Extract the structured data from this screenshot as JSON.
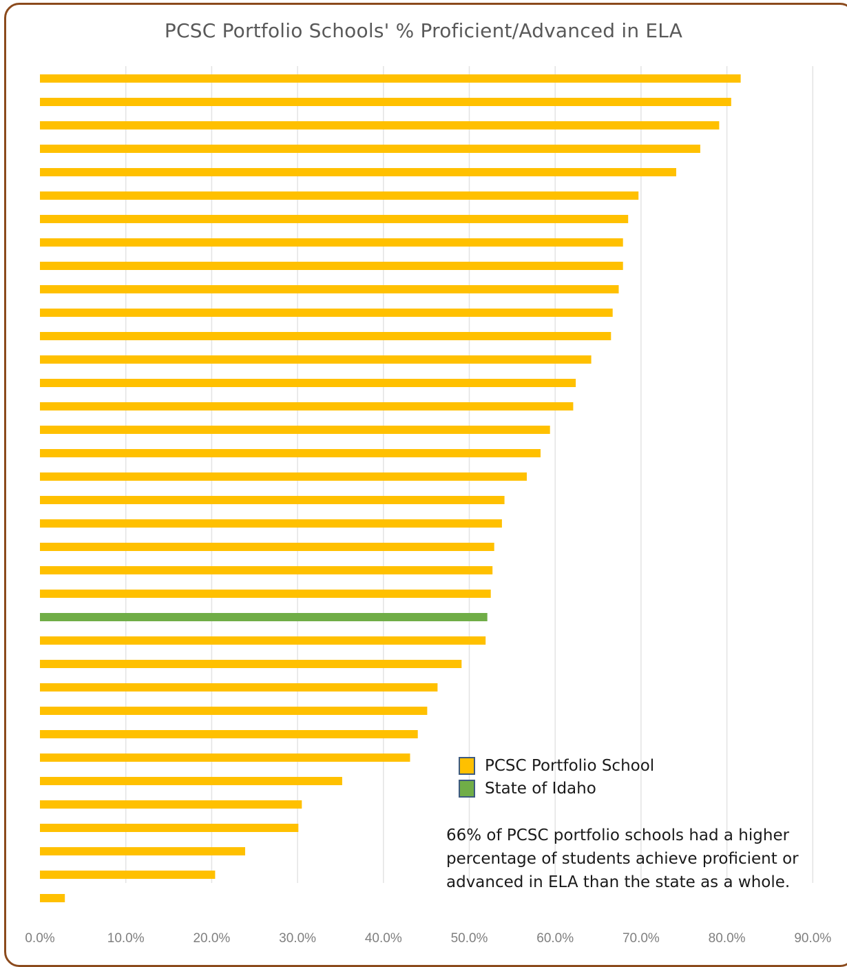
{
  "chart_data": {
    "type": "bar",
    "orientation": "horizontal",
    "title": "PCSC Portfolio Schools' % Proficient/Advanced in ELA",
    "xlabel": "",
    "ylabel": "",
    "xlim": [
      0,
      90
    ],
    "xticks": [
      "0.0%",
      "10.0%",
      "20.0%",
      "30.0%",
      "40.0%",
      "50.0%",
      "60.0%",
      "70.0%",
      "80.0%",
      "90.0%"
    ],
    "grid": true,
    "legend_placement": "bottom-right",
    "series": [
      {
        "name": "PCSC Portfolio School",
        "color": "#ffc000"
      },
      {
        "name": "State of Idaho",
        "color": "#70ad47"
      }
    ],
    "bars": [
      {
        "value": 81.6,
        "series": 0
      },
      {
        "value": 80.5,
        "series": 0
      },
      {
        "value": 79.1,
        "series": 0
      },
      {
        "value": 76.9,
        "series": 0
      },
      {
        "value": 74.1,
        "series": 0
      },
      {
        "value": 69.7,
        "series": 0
      },
      {
        "value": 68.5,
        "series": 0
      },
      {
        "value": 67.9,
        "series": 0
      },
      {
        "value": 67.9,
        "series": 0
      },
      {
        "value": 67.4,
        "series": 0
      },
      {
        "value": 66.7,
        "series": 0
      },
      {
        "value": 66.5,
        "series": 0
      },
      {
        "value": 64.2,
        "series": 0
      },
      {
        "value": 62.4,
        "series": 0
      },
      {
        "value": 62.1,
        "series": 0
      },
      {
        "value": 59.4,
        "series": 0
      },
      {
        "value": 58.3,
        "series": 0
      },
      {
        "value": 56.7,
        "series": 0
      },
      {
        "value": 54.1,
        "series": 0
      },
      {
        "value": 53.8,
        "series": 0
      },
      {
        "value": 52.9,
        "series": 0
      },
      {
        "value": 52.7,
        "series": 0
      },
      {
        "value": 52.5,
        "series": 0
      },
      {
        "value": 52.1,
        "series": 1
      },
      {
        "value": 51.9,
        "series": 0
      },
      {
        "value": 49.1,
        "series": 0
      },
      {
        "value": 46.3,
        "series": 0
      },
      {
        "value": 45.1,
        "series": 0
      },
      {
        "value": 44.0,
        "series": 0
      },
      {
        "value": 43.1,
        "series": 0
      },
      {
        "value": 35.2,
        "series": 0
      },
      {
        "value": 30.5,
        "series": 0
      },
      {
        "value": 30.1,
        "series": 0
      },
      {
        "value": 23.9,
        "series": 0
      },
      {
        "value": 20.4,
        "series": 0
      },
      {
        "value": 2.9,
        "series": 0
      }
    ],
    "annotation": "66% of PCSC portfolio schools had a higher percentage of students achieve proficient or advanced in ELA than the state as a whole."
  }
}
